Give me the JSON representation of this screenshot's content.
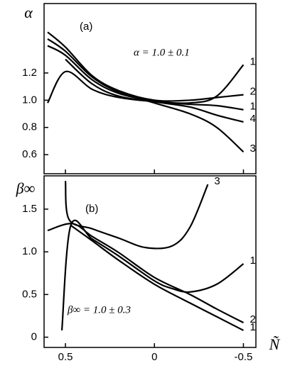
{
  "chart_data": [
    {
      "type": "line",
      "annotations": [
        "(a)",
        "α = 1.0 ± 0.1"
      ],
      "ylabel": "α",
      "xlim": [
        0.62,
        -0.57
      ],
      "ylim": [
        0.46,
        1.71
      ],
      "xticks": [
        0.5,
        0,
        -0.5
      ],
      "yticks": [
        0.6,
        0.8,
        {
          "value": 1,
          "label": "1.0"
        },
        1.2
      ],
      "series": [
        {
          "name": "1",
          "color": "#000000",
          "x": [
            0.6,
            0.5,
            0.35,
            0.2,
            0,
            -0.2,
            -0.35,
            -0.5
          ],
          "values": [
            0.98,
            1.21,
            1.08,
            1.02,
            0.99,
            0.98,
            1.03,
            1.26
          ]
        },
        {
          "name": "2",
          "color": "#000000",
          "x": [
            0.6,
            0.5,
            0.35,
            0.2,
            0,
            -0.2,
            -0.35,
            -0.5
          ],
          "values": [
            1.5,
            1.39,
            1.18,
            1.07,
            1.0,
            1.0,
            1.02,
            1.04
          ]
        },
        {
          "name": "1",
          "color": "#000000",
          "x": [
            0.5,
            0.35,
            0.2,
            0,
            -0.2,
            -0.35,
            -0.5
          ],
          "values": [
            1.3,
            1.12,
            1.03,
            0.99,
            0.97,
            0.96,
            0.93
          ]
        },
        {
          "name": "4",
          "color": "#000000",
          "x": [
            0.6,
            0.5,
            0.35,
            0.2,
            0,
            -0.2,
            -0.35,
            -0.5
          ],
          "values": [
            1.4,
            1.33,
            1.15,
            1.05,
            0.99,
            0.95,
            0.89,
            0.84
          ]
        },
        {
          "name": "3",
          "color": "#000000",
          "x": [
            0.6,
            0.5,
            0.35,
            0.2,
            0,
            -0.2,
            -0.35,
            -0.5
          ],
          "values": [
            1.45,
            1.36,
            1.17,
            1.06,
            0.98,
            0.9,
            0.8,
            0.62
          ]
        }
      ]
    },
    {
      "type": "line",
      "annotations": [
        "(b)",
        "β∞ = 1.0 ± 0.3"
      ],
      "ylabel": "β∞",
      "xlabel": "Ñ",
      "xlim": [
        0.62,
        -0.57
      ],
      "ylim": [
        -0.12,
        1.89
      ],
      "xticks": [
        0.5,
        0,
        -0.5
      ],
      "yticks": [
        0,
        0.5,
        {
          "value": 1,
          "label": "1.0"
        },
        1.5
      ],
      "series": [
        {
          "name": "3",
          "color": "#000000",
          "x": [
            0.5,
            0.48,
            0.35,
            0.2,
            0.05,
            -0.1,
            -0.2,
            -0.3
          ],
          "values": [
            1.83,
            1.38,
            1.27,
            1.16,
            1.05,
            1.07,
            1.29,
            1.79
          ]
        },
        {
          "name": "2",
          "color": "#000000",
          "x": [
            0.6,
            0.46,
            0.35,
            0.2,
            0,
            -0.2,
            -0.35,
            -0.5
          ],
          "values": [
            1.25,
            1.33,
            1.18,
            0.99,
            0.7,
            0.5,
            0.33,
            0.17
          ]
        },
        {
          "name": "1",
          "color": "#000000",
          "x": [
            0.52,
            0.47,
            0.35,
            0.2,
            0,
            -0.1,
            -0.2,
            -0.35,
            -0.5
          ],
          "values": [
            0.08,
            1.31,
            1.15,
            0.95,
            0.66,
            0.57,
            0.53,
            0.62,
            0.86
          ]
        },
        {
          "name": "1",
          "color": "#000000",
          "x": [
            0.47,
            0.35,
            0.2,
            0,
            -0.2,
            -0.35,
            -0.5
          ],
          "values": [
            1.31,
            1.13,
            0.9,
            0.62,
            0.4,
            0.24,
            0.08
          ]
        }
      ]
    }
  ]
}
